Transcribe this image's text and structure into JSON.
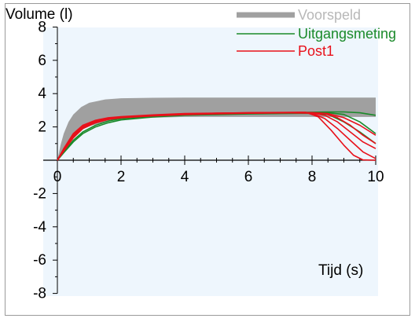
{
  "chart_data": {
    "type": "line",
    "ylabel": "Volume (l)",
    "xlabel": "Tijd (s)",
    "xlim": [
      0,
      10
    ],
    "ylim": [
      -8,
      8
    ],
    "x_ticks": [
      "0",
      "2",
      "4",
      "6",
      "8",
      "10"
    ],
    "y_ticks": [
      "8",
      "6",
      "4",
      "2",
      "0",
      "-2",
      "-4",
      "-6",
      "-8"
    ],
    "legend": {
      "placement": "top-right"
    },
    "predicted_band": {
      "name": "Voorspeld",
      "color": "#a0a0a0",
      "x": [
        0,
        0.1,
        0.2,
        0.35,
        0.5,
        0.75,
        1,
        1.5,
        2,
        3,
        4,
        6,
        8,
        10
      ],
      "upper": [
        0,
        0.9,
        1.6,
        2.3,
        2.75,
        3.2,
        3.45,
        3.65,
        3.72,
        3.75,
        3.76,
        3.76,
        3.76,
        3.76
      ],
      "lower": [
        0,
        0.35,
        0.7,
        1.1,
        1.45,
        1.8,
        2.05,
        2.3,
        2.45,
        2.55,
        2.6,
        2.6,
        2.6,
        2.6
      ]
    },
    "series": [
      {
        "name": "Uitgangsmeting",
        "color": "#1a8a2a",
        "curves": [
          {
            "x": [
              0,
              0.2,
              0.5,
              0.8,
              1.2,
              1.6,
              2,
              3,
              4,
              5,
              6,
              7,
              8,
              8.5,
              9,
              9.5,
              10
            ],
            "y": [
              0,
              0.6,
              1.4,
              1.9,
              2.25,
              2.45,
              2.55,
              2.68,
              2.75,
              2.8,
              2.82,
              2.85,
              2.88,
              2.9,
              2.9,
              2.85,
              2.7
            ]
          },
          {
            "x": [
              0,
              0.2,
              0.5,
              0.8,
              1.2,
              1.6,
              2,
              3,
              4,
              5,
              6,
              7,
              8,
              8.5,
              9,
              9.5,
              10
            ],
            "y": [
              0,
              0.5,
              1.2,
              1.7,
              2.1,
              2.35,
              2.5,
              2.65,
              2.72,
              2.76,
              2.8,
              2.82,
              2.85,
              2.85,
              2.75,
              2.3,
              1.6
            ]
          },
          {
            "x": [
              0,
              0.2,
              0.5,
              0.8,
              1.2,
              1.6,
              2,
              3,
              4,
              5,
              6,
              7,
              8,
              8.5,
              9,
              9.5,
              10
            ],
            "y": [
              0,
              0.45,
              1.1,
              1.6,
              2.0,
              2.25,
              2.42,
              2.6,
              2.7,
              2.74,
              2.78,
              2.8,
              2.82,
              2.75,
              2.3,
              1.7,
              1.0
            ]
          }
        ]
      },
      {
        "name": "Post1",
        "color": "#e8101a",
        "curves": [
          {
            "x": [
              0,
              0.2,
              0.5,
              0.8,
              1.2,
              1.6,
              2,
              3,
              4,
              5,
              6,
              7,
              7.8,
              8.2,
              8.6,
              9,
              9.3,
              9.6,
              10
            ],
            "y": [
              0,
              0.7,
              1.6,
              2.1,
              2.4,
              2.55,
              2.62,
              2.72,
              2.8,
              2.83,
              2.85,
              2.87,
              2.88,
              2.6,
              1.8,
              0.9,
              0.3,
              0.02,
              0
            ]
          },
          {
            "x": [
              0,
              0.2,
              0.5,
              0.8,
              1.2,
              1.6,
              2,
              3,
              4,
              5,
              6,
              7,
              8,
              8.4,
              8.8,
              9.2,
              9.6,
              10
            ],
            "y": [
              0,
              0.65,
              1.5,
              2.0,
              2.35,
              2.5,
              2.6,
              2.7,
              2.78,
              2.82,
              2.85,
              2.86,
              2.82,
              2.5,
              1.9,
              1.2,
              0.5,
              0.1
            ]
          },
          {
            "x": [
              0,
              0.2,
              0.5,
              0.8,
              1.2,
              1.6,
              2,
              3,
              4,
              5,
              6,
              7,
              8,
              8.4,
              8.8,
              9.2,
              9.6,
              10
            ],
            "y": [
              0,
              0.6,
              1.45,
              1.95,
              2.3,
              2.48,
              2.58,
              2.68,
              2.76,
              2.8,
              2.83,
              2.85,
              2.84,
              2.7,
              2.3,
              1.7,
              1.1,
              0.7
            ]
          },
          {
            "x": [
              0,
              0.2,
              0.5,
              0.8,
              1.2,
              1.6,
              2,
              3,
              4,
              5,
              6,
              7,
              8,
              8.4,
              8.8,
              9.2,
              9.6,
              10
            ],
            "y": [
              0,
              0.55,
              1.35,
              1.9,
              2.25,
              2.45,
              2.55,
              2.66,
              2.74,
              2.79,
              2.82,
              2.84,
              2.85,
              2.8,
              2.55,
              2.1,
              1.5,
              1.0
            ]
          },
          {
            "x": [
              0,
              0.2,
              0.5,
              0.8,
              1.2,
              1.6,
              2,
              3,
              4,
              5,
              6,
              7,
              8,
              8.5,
              9,
              9.5,
              10
            ],
            "y": [
              0,
              0.68,
              1.55,
              2.05,
              2.38,
              2.52,
              2.6,
              2.7,
              2.78,
              2.82,
              2.84,
              2.86,
              2.86,
              2.8,
              2.55,
              2.1,
              1.5
            ]
          }
        ]
      }
    ]
  }
}
